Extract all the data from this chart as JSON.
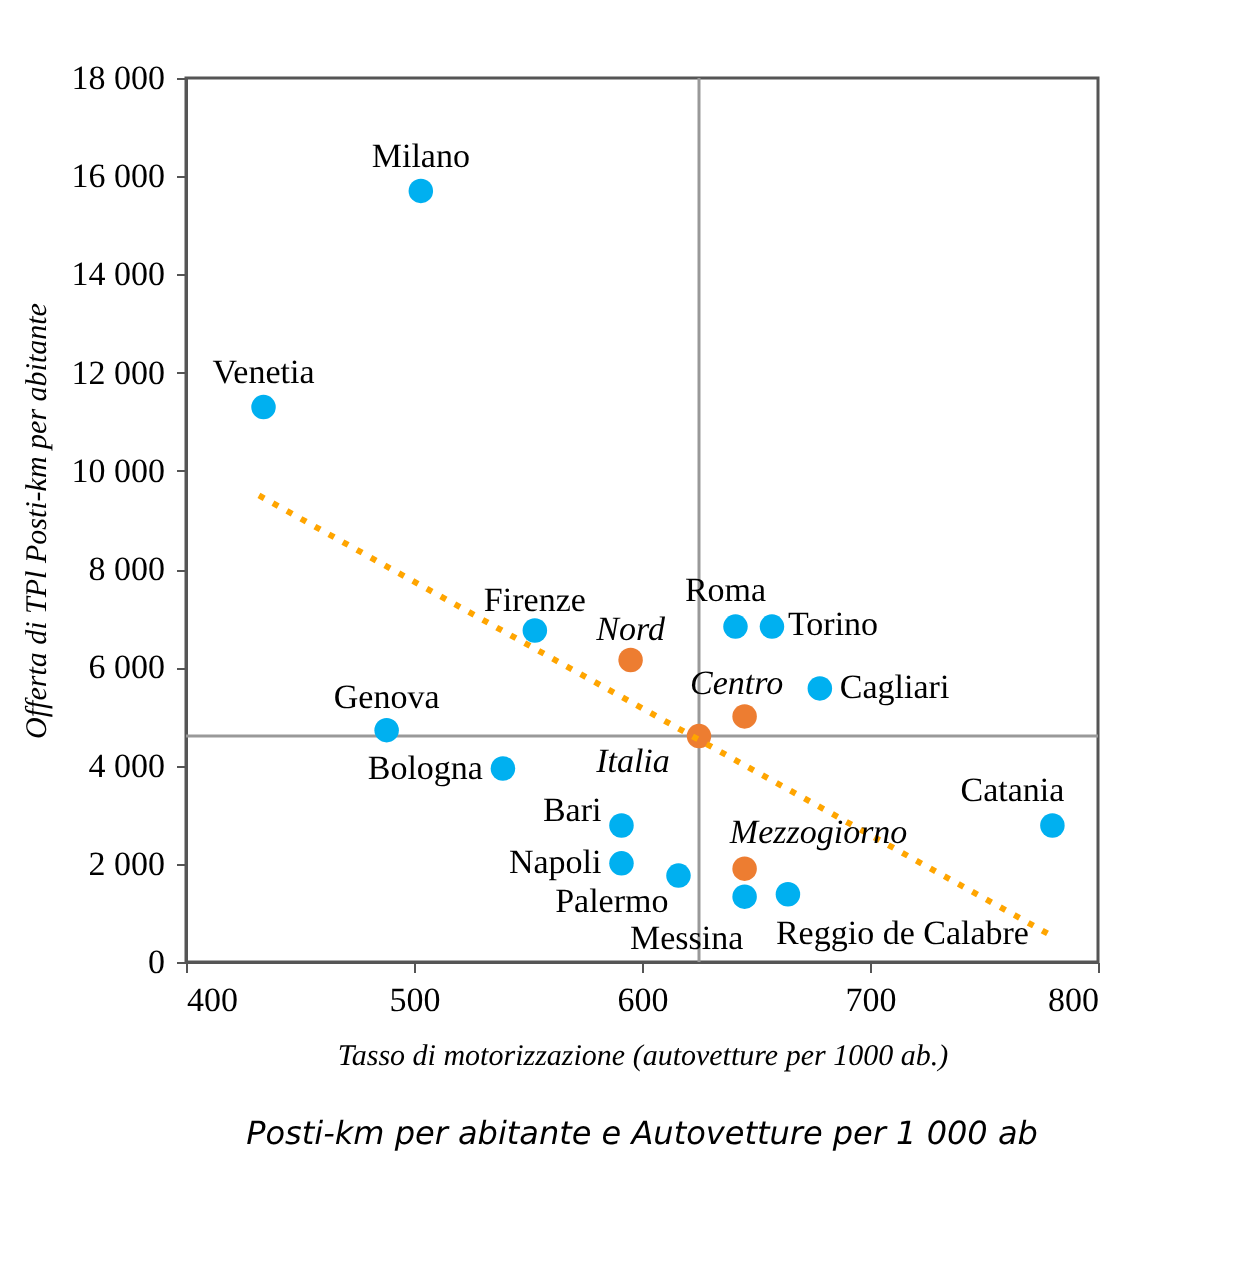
{
  "chart_data": {
    "type": "scatter",
    "xlabel": "Tasso di motorizzazione (autovetture per 1000 ab.)",
    "ylabel": "Offerta di TPl Posti-km per abitante",
    "xlim": [
      400,
      800
    ],
    "xticks": [
      400,
      500,
      600,
      700,
      800
    ],
    "ylim": [
      0,
      18000
    ],
    "yticks": [
      0,
      {
        "value": 2000,
        "label": "2 000"
      },
      {
        "value": 4000,
        "label": "4 000"
      },
      {
        "value": 6000,
        "label": "6 000"
      },
      {
        "value": 8000,
        "label": "8 000"
      },
      {
        "value": 10000,
        "label": "10 000"
      },
      {
        "value": 12000,
        "label": "12 000"
      },
      {
        "value": 14000,
        "label": "14 000"
      },
      {
        "value": 16000,
        "label": "16 000"
      },
      {
        "value": 18000,
        "label": "18 000"
      }
    ],
    "grid": false,
    "marker": "circle",
    "series": [
      {
        "color": "#00b0f0",
        "x": [
          503,
          434,
          553,
          641,
          657,
          678,
          488,
          539,
          591,
          591,
          616,
          645,
          664,
          780
        ],
        "values": [
          15700,
          11300,
          6750,
          6830,
          6830,
          5570,
          4720,
          3940,
          2780,
          2010,
          1760,
          1330,
          1380,
          2780
        ]
      },
      {
        "color": "#ed7d31",
        "x": [
          595,
          645,
          625,
          645
        ],
        "values": [
          6150,
          5000,
          4600,
          1900
        ]
      },
      {
        "type": "line",
        "marker": "none",
        "line_style": "dotted",
        "color": "#ffa500",
        "x": [
          432,
          781
        ],
        "values": [
          9500,
          500
        ]
      }
    ],
    "ref_lines": [
      {
        "axis": "x",
        "value": 625,
        "color": "#999999"
      },
      {
        "axis": "y",
        "value": 4600,
        "color": "#999999"
      }
    ],
    "annotations": [
      {
        "text": "Milano",
        "x": 503,
        "y": 15700
      },
      {
        "text": "Venetia",
        "x": 434,
        "y": 11300
      },
      {
        "text": "Firenze",
        "x": 553,
        "y": 6750
      },
      {
        "text": "Roma",
        "x": 641,
        "y": 6830
      },
      {
        "text": "Torino",
        "x": 657,
        "y": 6830
      },
      {
        "text": "Cagliari",
        "x": 678,
        "y": 5570
      },
      {
        "text": "Genova",
        "x": 488,
        "y": 4720
      },
      {
        "text": "Bologna",
        "x": 539,
        "y": 3940
      },
      {
        "text": "Bari",
        "x": 591,
        "y": 2780
      },
      {
        "text": "Napoli",
        "x": 591,
        "y": 2010
      },
      {
        "text": "Palermo",
        "x": 616,
        "y": 1760
      },
      {
        "text": "Messina",
        "x": 645,
        "y": 1330
      },
      {
        "text": "Reggio de Calabre",
        "x": 664,
        "y": 1380
      },
      {
        "text": "Catania",
        "x": 780,
        "y": 2780
      },
      {
        "text": "Nord",
        "x": 595,
        "y": 6150
      },
      {
        "text": "Centro",
        "x": 645,
        "y": 5000
      },
      {
        "text": "Italia",
        "x": 625,
        "y": 4600
      },
      {
        "text": "Mezzogiorno",
        "x": 645,
        "y": 1900
      },
      "Posti-km per abitante e Autovetture per 1 000 ab"
    ]
  }
}
